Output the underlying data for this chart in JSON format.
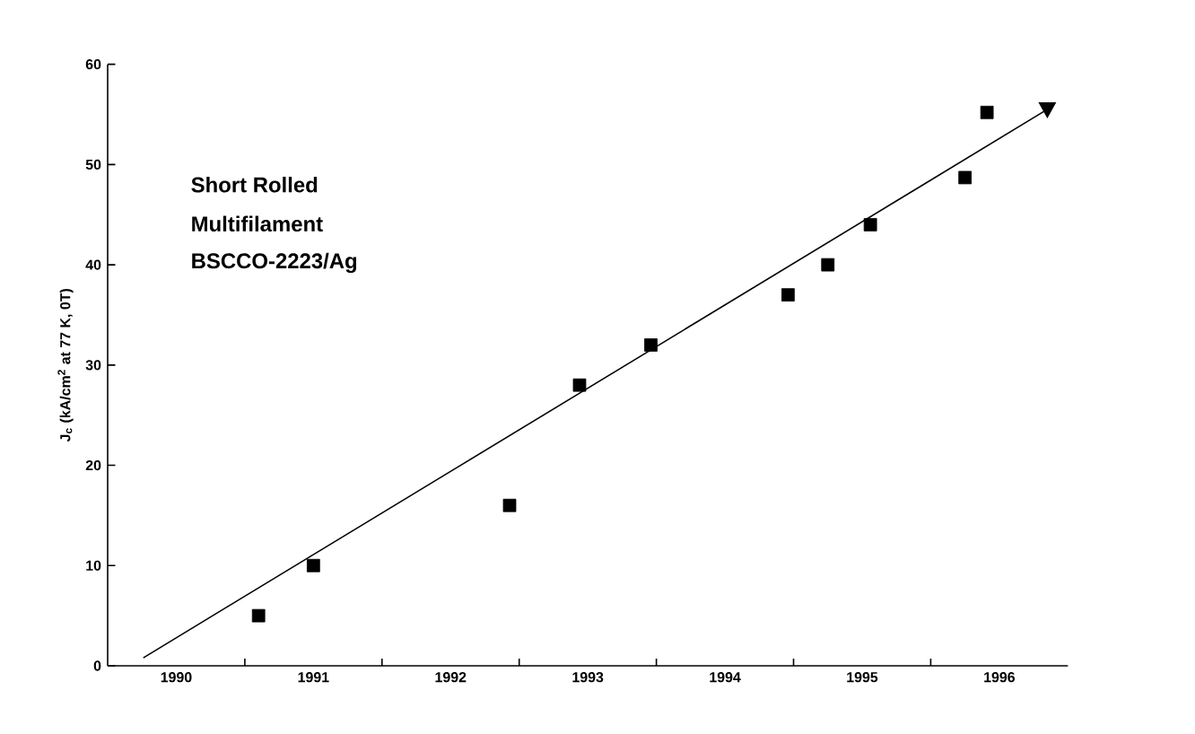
{
  "chart_data": {
    "type": "scatter",
    "ylabel": "J$_{c}$ (kA/cm$^{2}$ at 77 K, 0T)",
    "annotations": [
      "Short Rolled",
      "Multifilament",
      "BSCCO-2223/Ag"
    ],
    "xlim": [
      1990,
      1997
    ],
    "ylim": [
      0,
      60
    ],
    "xticks": [
      {
        "value": 1990.5,
        "label": "1990"
      },
      {
        "value": 1991.5,
        "label": "1991"
      },
      {
        "value": 1992.5,
        "label": "1992"
      },
      {
        "value": 1993.5,
        "label": "1993"
      },
      {
        "value": 1994.5,
        "label": "1994"
      },
      {
        "value": 1995.5,
        "label": "1995"
      },
      {
        "value": 1996.5,
        "label": "1996"
      },
      {
        "value": 1991,
        "label": null
      },
      {
        "value": 1992,
        "label": null
      },
      {
        "value": 1993,
        "label": null
      },
      {
        "value": 1994,
        "label": null
      },
      {
        "value": 1995,
        "label": null
      },
      {
        "value": 1996,
        "label": null
      }
    ],
    "yticks": [
      0,
      10,
      20,
      30,
      40,
      50,
      60
    ],
    "grid": false,
    "series": [
      {
        "marker": "square",
        "color": "#000000",
        "x": [
          1991.1,
          1991.5,
          1992.93,
          1993.44,
          1993.96,
          1994.96,
          1995.25,
          1995.56,
          1996.25,
          1996.41
        ],
        "values": [
          5,
          10,
          16,
          28,
          32,
          37,
          40,
          44,
          48.7,
          55.2
        ]
      },
      {
        "type": "line",
        "color": "#000000",
        "x": [
          1990.26,
          1996.85
        ],
        "values": [
          0.8,
          55.5
        ]
      }
    ]
  }
}
